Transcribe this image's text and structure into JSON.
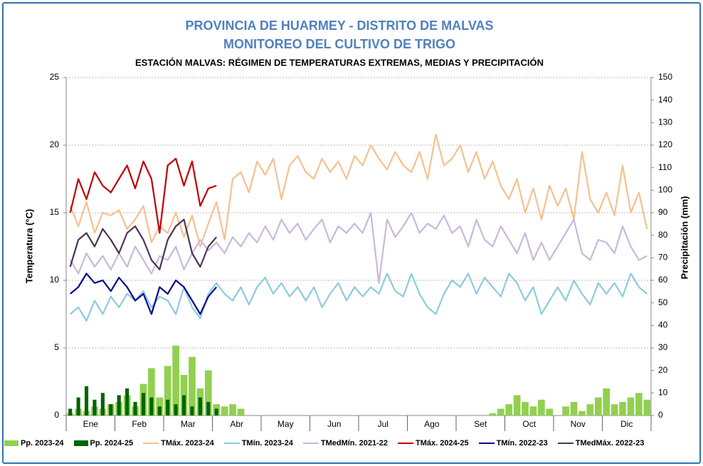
{
  "chart_data": {
    "type": "line",
    "title": "PROVINCIA DE HUARMEY - DISTRITO DE MALVAS",
    "subtitle": "MONITOREO DEL CULTIVO DE TRIGO",
    "subtitle2": "ESTACIÓN MALVAS: RÉGIMEN DE TEMPERATURAS EXTREMAS, MEDIAS Y PRECIPITACIÓN",
    "y_label": "Temperatura (°C)",
    "y2_label": "Precipitación (mm)",
    "ylim": [
      0,
      25
    ],
    "yticks": [
      0,
      5,
      10,
      15,
      20,
      25
    ],
    "y2lim": [
      0,
      150
    ],
    "y2ticks": [
      0,
      10,
      20,
      30,
      40,
      50,
      60,
      70,
      80,
      90,
      100,
      110,
      120,
      130,
      140,
      150
    ],
    "grid": true,
    "categories": [
      null,
      null,
      null,
      "Ene",
      null,
      null,
      null,
      null,
      null,
      "Feb",
      null,
      null,
      null,
      null,
      null,
      "Mar",
      null,
      null,
      null,
      null,
      null,
      "Abr",
      null,
      null,
      null,
      null,
      null,
      "May",
      null,
      null,
      null,
      null,
      null,
      "Jun",
      null,
      null,
      null,
      null,
      null,
      "Jul",
      null,
      null,
      null,
      null,
      null,
      "Ago",
      null,
      null,
      null,
      null,
      null,
      "Set",
      null,
      null,
      null,
      null,
      null,
      "Oct",
      null,
      null,
      null,
      null,
      null,
      "Nov",
      null,
      null,
      null,
      null,
      null,
      "Dic",
      null,
      null
    ],
    "series": [
      {
        "name": "Pp. 2023-24",
        "type": "bar",
        "axis": "y2",
        "color": "#92d050",
        "values": [
          1,
          3,
          2,
          4,
          3,
          5,
          6,
          9,
          4,
          14,
          21,
          8,
          22,
          31,
          18,
          26,
          12,
          20,
          5,
          4,
          5,
          3,
          0,
          0,
          0,
          0,
          0,
          0,
          0,
          0,
          0,
          0,
          0,
          0,
          0,
          0,
          0,
          0,
          0,
          0,
          0,
          0,
          0,
          0,
          0,
          0,
          0,
          0,
          0,
          0,
          0,
          0,
          1,
          3,
          5,
          9,
          6,
          4,
          7,
          3,
          0,
          4,
          6,
          2,
          5,
          8,
          12,
          5,
          6,
          8,
          10,
          7
        ]
      },
      {
        "name": "Pp. 2024-25",
        "type": "bar",
        "axis": "y2",
        "color": "#006400",
        "values": [
          3,
          8,
          13,
          7,
          10,
          5,
          9,
          12,
          6,
          10,
          8,
          4,
          7,
          5,
          9,
          4,
          8,
          6,
          3,
          null,
          null,
          null,
          null,
          null,
          null,
          null,
          null,
          null,
          null,
          null,
          null,
          null,
          null,
          null,
          null,
          null,
          null,
          null,
          null,
          null,
          null,
          null,
          null,
          null,
          null,
          null,
          null,
          null,
          null,
          null,
          null,
          null,
          null,
          null,
          null,
          null,
          null,
          null,
          null,
          null,
          null,
          null,
          null,
          null,
          null,
          null,
          null,
          null,
          null,
          null,
          null,
          null
        ]
      },
      {
        "name": "TMáx. 2023-24",
        "type": "line",
        "color": "#f7c08f",
        "values": [
          15.5,
          14.0,
          15.8,
          13.5,
          15.0,
          14.8,
          15.2,
          13.8,
          14.5,
          15.5,
          12.8,
          14.0,
          13.5,
          15.0,
          13.2,
          14.8,
          12.5,
          14.2,
          15.8,
          13.0,
          17.5,
          18.0,
          16.5,
          18.8,
          17.8,
          19.0,
          16.0,
          18.5,
          19.2,
          18.0,
          17.5,
          19.0,
          18.0,
          18.8,
          17.5,
          19.2,
          18.5,
          20.0,
          19.0,
          18.2,
          19.5,
          18.5,
          18.0,
          19.5,
          17.5,
          20.8,
          18.5,
          19.0,
          20.0,
          18.0,
          19.5,
          17.5,
          18.8,
          17.0,
          16.0,
          17.5,
          15.0,
          16.8,
          14.5,
          17.0,
          15.5,
          16.8,
          14.5,
          19.5,
          16.0,
          15.0,
          16.5,
          14.8,
          18.5,
          15.0,
          16.5,
          13.8
        ]
      },
      {
        "name": "TMín. 2023-24",
        "type": "line",
        "color": "#8ecbdc",
        "values": [
          7.5,
          8.0,
          7.0,
          8.5,
          7.5,
          8.8,
          8.0,
          9.0,
          8.5,
          9.2,
          8.0,
          8.8,
          8.5,
          7.5,
          9.5,
          8.0,
          7.2,
          9.0,
          9.8,
          9.0,
          8.5,
          9.5,
          8.2,
          9.5,
          10.2,
          9.0,
          9.8,
          8.8,
          9.5,
          8.5,
          9.5,
          8.0,
          9.0,
          9.8,
          8.5,
          9.5,
          8.8,
          9.5,
          9.0,
          10.5,
          9.2,
          8.8,
          10.5,
          9.0,
          8.0,
          7.5,
          9.0,
          10.0,
          9.5,
          10.5,
          9.0,
          10.2,
          9.5,
          8.8,
          10.5,
          9.8,
          8.5,
          9.5,
          7.5,
          8.5,
          9.5,
          8.5,
          10.0,
          9.0,
          8.2,
          9.8,
          9.0,
          9.8,
          8.8,
          10.5,
          9.5,
          9.0
        ]
      },
      {
        "name": "TMedMín. 2021-22",
        "type": "line",
        "color": "#c9b8dc",
        "values": [
          11.5,
          10.5,
          12.0,
          11.0,
          11.8,
          10.8,
          12.0,
          11.0,
          12.5,
          11.5,
          10.5,
          11.8,
          11.5,
          12.5,
          10.8,
          12.0,
          13.0,
          12.2,
          12.8,
          12.0,
          13.2,
          12.5,
          13.5,
          12.8,
          14.0,
          13.0,
          14.5,
          13.5,
          14.2,
          13.0,
          13.8,
          14.5,
          12.8,
          14.0,
          13.5,
          14.2,
          13.5,
          15.0,
          9.8,
          14.5,
          13.2,
          14.0,
          15.0,
          13.5,
          14.2,
          13.8,
          14.8,
          13.5,
          14.0,
          12.5,
          14.5,
          13.0,
          12.5,
          14.0,
          13.0,
          12.0,
          13.5,
          11.5,
          12.8,
          11.5,
          12.5,
          13.5,
          14.5,
          12.0,
          11.5,
          13.0,
          12.8,
          12.0,
          14.0,
          12.5,
          11.5,
          11.8
        ]
      },
      {
        "name": "TMáx. 2024-25",
        "type": "line",
        "color": "#c00000",
        "values": [
          15.0,
          17.5,
          16.0,
          18.0,
          17.0,
          16.5,
          17.5,
          18.5,
          16.8,
          18.8,
          17.5,
          13.5,
          18.5,
          19.0,
          17.0,
          18.8,
          15.5,
          16.8,
          17.0,
          null,
          null,
          null,
          null,
          null,
          null,
          null,
          null,
          null,
          null,
          null,
          null,
          null,
          null,
          null,
          null,
          null,
          null,
          null,
          null,
          null,
          null,
          null,
          null,
          null,
          null,
          null,
          null,
          null,
          null,
          null,
          null,
          null,
          null,
          null,
          null,
          null,
          null,
          null,
          null,
          null,
          null,
          null,
          null,
          null,
          null,
          null,
          null,
          null,
          null,
          null,
          null,
          null
        ]
      },
      {
        "name": "TMín. 2022-23",
        "type": "line",
        "color": "#0a0a8f",
        "values": [
          9.0,
          9.5,
          10.5,
          9.8,
          10.0,
          9.2,
          10.2,
          9.5,
          8.5,
          9.0,
          7.5,
          9.5,
          9.0,
          10.0,
          9.5,
          8.5,
          7.5,
          8.8,
          9.5,
          null,
          null,
          null,
          null,
          null,
          null,
          null,
          null,
          null,
          null,
          null,
          null,
          null,
          null,
          null,
          null,
          null,
          null,
          null,
          null,
          null,
          null,
          null,
          null,
          null,
          null,
          null,
          null,
          null,
          null,
          null,
          null,
          null,
          null,
          null,
          null,
          null,
          null,
          null,
          null,
          null,
          null,
          null,
          null,
          null,
          null,
          null,
          null,
          null,
          null,
          null,
          null,
          null
        ]
      },
      {
        "name": "TMedMáx. 2022-23",
        "type": "line",
        "color": "#4a3656",
        "values": [
          11.0,
          13.0,
          13.5,
          12.5,
          13.8,
          13.0,
          12.0,
          13.5,
          14.0,
          13.0,
          11.5,
          10.8,
          13.0,
          14.0,
          14.5,
          12.0,
          11.0,
          12.5,
          13.2,
          null,
          null,
          null,
          null,
          null,
          null,
          null,
          null,
          null,
          null,
          null,
          null,
          null,
          null,
          null,
          null,
          null,
          null,
          null,
          null,
          null,
          null,
          null,
          null,
          null,
          null,
          null,
          null,
          null,
          null,
          null,
          null,
          null,
          null,
          null,
          null,
          null,
          null,
          null,
          null,
          null,
          null,
          null,
          null,
          null,
          null,
          null,
          null,
          null,
          null,
          null,
          null,
          null
        ]
      }
    ]
  }
}
